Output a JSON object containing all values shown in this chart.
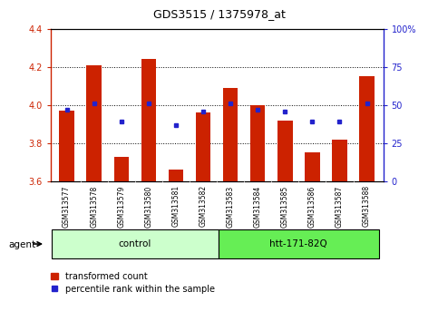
{
  "title": "GDS3515 / 1375978_at",
  "samples": [
    "GSM313577",
    "GSM313578",
    "GSM313579",
    "GSM313580",
    "GSM313581",
    "GSM313582",
    "GSM313583",
    "GSM313584",
    "GSM313585",
    "GSM313586",
    "GSM313587",
    "GSM313588"
  ],
  "transformed_count": [
    3.97,
    4.21,
    3.73,
    4.24,
    3.66,
    3.96,
    4.09,
    4.0,
    3.92,
    3.75,
    3.82,
    4.15
  ],
  "ylim_left": [
    3.6,
    4.4
  ],
  "ylim_right": [
    0,
    100
  ],
  "yticks_left": [
    3.6,
    3.8,
    4.0,
    4.2,
    4.4
  ],
  "yticks_right": [
    0,
    25,
    50,
    75,
    100
  ],
  "ytick_labels_right": [
    "0",
    "25",
    "50",
    "75",
    "100%"
  ],
  "bar_color": "#cc2200",
  "dot_color": "#2222cc",
  "bar_bottom": 3.6,
  "pr_right": [
    47,
    51,
    39,
    51,
    37,
    46,
    51,
    47,
    46,
    39,
    39,
    51
  ],
  "group_colors": [
    "#ccffcc",
    "#66ee55"
  ],
  "agent_label": "agent",
  "legend_bar_label": "transformed count",
  "legend_dot_label": "percentile rank within the sample",
  "background_color": "#ffffff",
  "xtick_bg_color": "#cccccc",
  "left_tick_color": "#cc2200",
  "right_tick_color": "#2222cc",
  "grid_color": "#000000"
}
